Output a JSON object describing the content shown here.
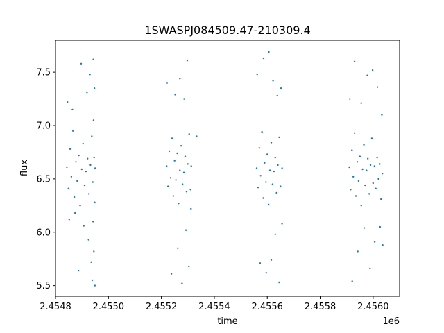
{
  "chart_data": {
    "type": "scatter",
    "title": "1SWASPJ084509.47-210309.4",
    "xlabel": "time",
    "ylabel": "flux",
    "x_offset_label": "1e6",
    "xlim": [
      2454800,
      2456100
    ],
    "ylim": [
      5.4,
      7.8
    ],
    "xticks": [
      2454800,
      2455000,
      2455200,
      2455400,
      2455600,
      2455800,
      2456000
    ],
    "xtick_labels": [
      "2.4548",
      "2.4550",
      "2.4552",
      "2.4554",
      "2.4556",
      "2.4558",
      "2.4560"
    ],
    "yticks": [
      5.5,
      6.0,
      6.5,
      7.0,
      7.5
    ],
    "ytick_labels": [
      "5.5",
      "6.0",
      "6.5",
      "7.0",
      "7.5"
    ],
    "grid": false,
    "marker_color": "#1f77b4",
    "series": [
      {
        "points": [
          [
            2454843,
            6.61
          ],
          [
            2454849,
            6.41
          ],
          [
            2454855,
            6.78
          ],
          [
            2454860,
            6.52
          ],
          [
            2454866,
            6.95
          ],
          [
            2454871,
            6.33
          ],
          [
            2454877,
            6.66
          ],
          [
            2454882,
            6.48
          ],
          [
            2454888,
            6.72
          ],
          [
            2454893,
            6.25
          ],
          [
            2454899,
            6.59
          ],
          [
            2454904,
            6.83
          ],
          [
            2454910,
            6.44
          ],
          [
            2454915,
            6.57
          ],
          [
            2454921,
            6.69
          ],
          [
            2454926,
            6.36
          ],
          [
            2454932,
            6.63
          ],
          [
            2454937,
            6.9
          ],
          [
            2454941,
            6.47
          ],
          [
            2454942,
            6.1
          ],
          [
            2454944,
            7.05
          ],
          [
            2454946,
            6.7
          ],
          [
            2454948,
            6.28
          ],
          [
            2454950,
            6.6
          ],
          [
            2454845,
            7.22
          ],
          [
            2454852,
            6.12
          ],
          [
            2454864,
            7.15
          ],
          [
            2454874,
            6.18
          ],
          [
            2454887,
            5.64
          ],
          [
            2454897,
            7.58
          ],
          [
            2454907,
            6.06
          ],
          [
            2454919,
            7.31
          ],
          [
            2454925,
            5.93
          ],
          [
            2454930,
            7.48
          ],
          [
            2454935,
            5.72
          ],
          [
            2454939,
            5.55
          ],
          [
            2454943,
            7.62
          ],
          [
            2454945,
            5.82
          ],
          [
            2454947,
            7.35
          ],
          [
            2454949,
            5.5
          ],
          [
            2455220,
            6.62
          ],
          [
            2455225,
            6.43
          ],
          [
            2455230,
            6.76
          ],
          [
            2455235,
            6.51
          ],
          [
            2455240,
            6.88
          ],
          [
            2455245,
            6.34
          ],
          [
            2455250,
            6.67
          ],
          [
            2455255,
            6.49
          ],
          [
            2455260,
            6.74
          ],
          [
            2455265,
            6.27
          ],
          [
            2455270,
            6.58
          ],
          [
            2455275,
            6.81
          ],
          [
            2455280,
            6.45
          ],
          [
            2455285,
            6.56
          ],
          [
            2455290,
            6.71
          ],
          [
            2455295,
            6.38
          ],
          [
            2455300,
            6.64
          ],
          [
            2455305,
            6.92
          ],
          [
            2455310,
            6.4
          ],
          [
            2455313,
            6.62
          ],
          [
            2455222,
            7.4
          ],
          [
            2455238,
            5.61
          ],
          [
            2455252,
            7.29
          ],
          [
            2455262,
            5.85
          ],
          [
            2455270,
            7.44
          ],
          [
            2455278,
            5.52
          ],
          [
            2455286,
            7.25
          ],
          [
            2455293,
            6.02
          ],
          [
            2455298,
            7.61
          ],
          [
            2455304,
            5.68
          ],
          [
            2455312,
            6.22
          ],
          [
            2455333,
            6.9
          ],
          [
            2455560,
            6.6
          ],
          [
            2455565,
            6.42
          ],
          [
            2455570,
            6.79
          ],
          [
            2455575,
            6.53
          ],
          [
            2455580,
            6.94
          ],
          [
            2455585,
            6.32
          ],
          [
            2455590,
            6.65
          ],
          [
            2455595,
            6.47
          ],
          [
            2455600,
            6.73
          ],
          [
            2455605,
            6.26
          ],
          [
            2455610,
            6.58
          ],
          [
            2455615,
            6.84
          ],
          [
            2455620,
            6.45
          ],
          [
            2455625,
            6.57
          ],
          [
            2455630,
            6.7
          ],
          [
            2455635,
            6.37
          ],
          [
            2455640,
            6.63
          ],
          [
            2455645,
            6.89
          ],
          [
            2455650,
            6.43
          ],
          [
            2455656,
            6.6
          ],
          [
            2455562,
            7.48
          ],
          [
            2455573,
            5.71
          ],
          [
            2455586,
            7.63
          ],
          [
            2455596,
            5.62
          ],
          [
            2455606,
            7.69
          ],
          [
            2455615,
            5.74
          ],
          [
            2455622,
            7.42
          ],
          [
            2455630,
            5.98
          ],
          [
            2455638,
            7.28
          ],
          [
            2455645,
            5.53
          ],
          [
            2455652,
            7.35
          ],
          [
            2455656,
            6.08
          ],
          [
            2455910,
            6.61
          ],
          [
            2455915,
            6.4
          ],
          [
            2455920,
            6.77
          ],
          [
            2455925,
            6.52
          ],
          [
            2455930,
            6.93
          ],
          [
            2455935,
            6.34
          ],
          [
            2455940,
            6.66
          ],
          [
            2455945,
            6.48
          ],
          [
            2455950,
            6.71
          ],
          [
            2455955,
            6.25
          ],
          [
            2455960,
            6.59
          ],
          [
            2455965,
            6.82
          ],
          [
            2455970,
            6.44
          ],
          [
            2455975,
            6.58
          ],
          [
            2455980,
            6.69
          ],
          [
            2455985,
            6.36
          ],
          [
            2455990,
            6.63
          ],
          [
            2455995,
            6.88
          ],
          [
            2456000,
            6.46
          ],
          [
            2456005,
            6.62
          ],
          [
            2456010,
            6.41
          ],
          [
            2456015,
            6.7
          ],
          [
            2456020,
            6.5
          ],
          [
            2456025,
            6.64
          ],
          [
            2456030,
            6.31
          ],
          [
            2456035,
            6.55
          ],
          [
            2455912,
            7.25
          ],
          [
            2455921,
            5.54
          ],
          [
            2455930,
            7.6
          ],
          [
            2455942,
            5.82
          ],
          [
            2455955,
            7.21
          ],
          [
            2455966,
            6.04
          ],
          [
            2455978,
            7.47
          ],
          [
            2455988,
            5.66
          ],
          [
            2455998,
            7.52
          ],
          [
            2456006,
            5.91
          ],
          [
            2456016,
            7.36
          ],
          [
            2456026,
            6.05
          ],
          [
            2456033,
            7.1
          ],
          [
            2456036,
            5.88
          ]
        ]
      }
    ]
  }
}
